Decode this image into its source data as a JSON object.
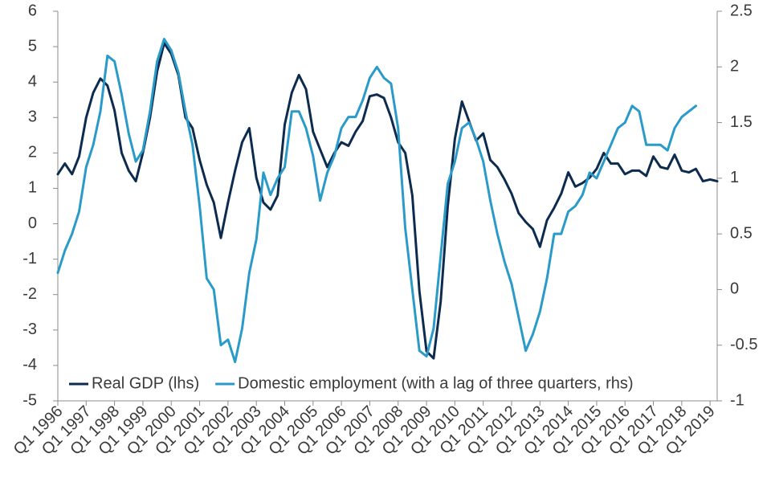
{
  "chart_data": {
    "type": "line",
    "title": "",
    "xlabel": "",
    "ylabel": "",
    "legend_placement": "bottom",
    "grid": false,
    "x_tick_labels": [
      "Q1 1996",
      "Q1 1997",
      "Q1 1998",
      "Q1 1999",
      "Q1 2000",
      "Q1 2001",
      "Q1 2002",
      "Q1 2003",
      "Q1 2004",
      "Q1 2005",
      "Q1 2006",
      "Q1 2007",
      "Q1 2008",
      "Q1 2009",
      "Q1 2010",
      "Q1 2011",
      "Q1 2012",
      "Q1 2013",
      "Q1 2014",
      "Q1 2015",
      "Q1 2016",
      "Q1 2017",
      "Q1 2018",
      "Q1 2019"
    ],
    "y_left": {
      "ylim": [
        -5,
        6
      ],
      "ticks": [
        "-5",
        "-4",
        "-3",
        "-2",
        "-1",
        "0",
        "1",
        "2",
        "3",
        "4",
        "5",
        "6"
      ]
    },
    "y_right": {
      "ylim": [
        -1,
        2.5
      ],
      "ticks": [
        "-1",
        "-0.5",
        "0",
        "0.5",
        "1",
        "1.5",
        "2",
        "2.5"
      ]
    },
    "series": [
      {
        "name": "Real GDP (lhs)",
        "axis": "left",
        "color": "#0d2b4e",
        "x_start": "Q1 1996",
        "values": [
          1.4,
          1.7,
          1.4,
          1.9,
          3.0,
          3.7,
          4.1,
          3.9,
          3.2,
          2.0,
          1.5,
          1.2,
          2.0,
          3.0,
          4.3,
          5.1,
          4.8,
          4.2,
          3.0,
          2.7,
          1.8,
          1.1,
          0.6,
          -0.4,
          0.6,
          1.5,
          2.3,
          2.7,
          1.3,
          0.6,
          0.4,
          0.8,
          2.8,
          3.7,
          4.2,
          3.8,
          2.6,
          2.1,
          1.6,
          2.0,
          2.3,
          2.2,
          2.6,
          2.9,
          3.6,
          3.65,
          3.55,
          3.0,
          2.3,
          2.0,
          0.8,
          -1.9,
          -3.6,
          -3.8,
          -2.2,
          0.5,
          2.4,
          3.45,
          2.9,
          2.35,
          2.55,
          1.8,
          1.6,
          1.25,
          0.85,
          0.3,
          0.05,
          -0.15,
          -0.65,
          0.1,
          0.45,
          0.85,
          1.45,
          1.05,
          1.15,
          1.3,
          1.55,
          2.0,
          1.7,
          1.7,
          1.4,
          1.5,
          1.5,
          1.35,
          1.9,
          1.6,
          1.55,
          1.95,
          1.5,
          1.45,
          1.55,
          1.2,
          1.25,
          1.2
        ]
      },
      {
        "name": "Domestic employment (with a lag of three quarters, rhs)",
        "axis": "right",
        "color": "#2a9bc8",
        "x_start": "Q1 1996",
        "values": [
          0.15,
          0.35,
          0.5,
          0.7,
          1.1,
          1.3,
          1.6,
          2.1,
          2.05,
          1.75,
          1.4,
          1.15,
          1.25,
          1.6,
          2.05,
          2.25,
          2.15,
          1.95,
          1.6,
          1.3,
          0.75,
          0.1,
          0.0,
          -0.5,
          -0.45,
          -0.65,
          -0.35,
          0.15,
          0.45,
          1.05,
          0.85,
          1.0,
          1.1,
          1.6,
          1.6,
          1.45,
          1.2,
          0.8,
          1.05,
          1.2,
          1.45,
          1.55,
          1.55,
          1.7,
          1.9,
          2.0,
          1.9,
          1.85,
          1.45,
          0.55,
          0.0,
          -0.55,
          -0.6,
          -0.35,
          0.3,
          0.95,
          1.15,
          1.45,
          1.5,
          1.35,
          1.15,
          0.8,
          0.5,
          0.25,
          0.05,
          -0.25,
          -0.55,
          -0.4,
          -0.2,
          0.1,
          0.5,
          0.5,
          0.7,
          0.75,
          0.85,
          1.05,
          1.0,
          1.15,
          1.3,
          1.45,
          1.5,
          1.65,
          1.6,
          1.3,
          1.3,
          1.3,
          1.25,
          1.45,
          1.55,
          1.6,
          1.65
        ]
      }
    ]
  }
}
